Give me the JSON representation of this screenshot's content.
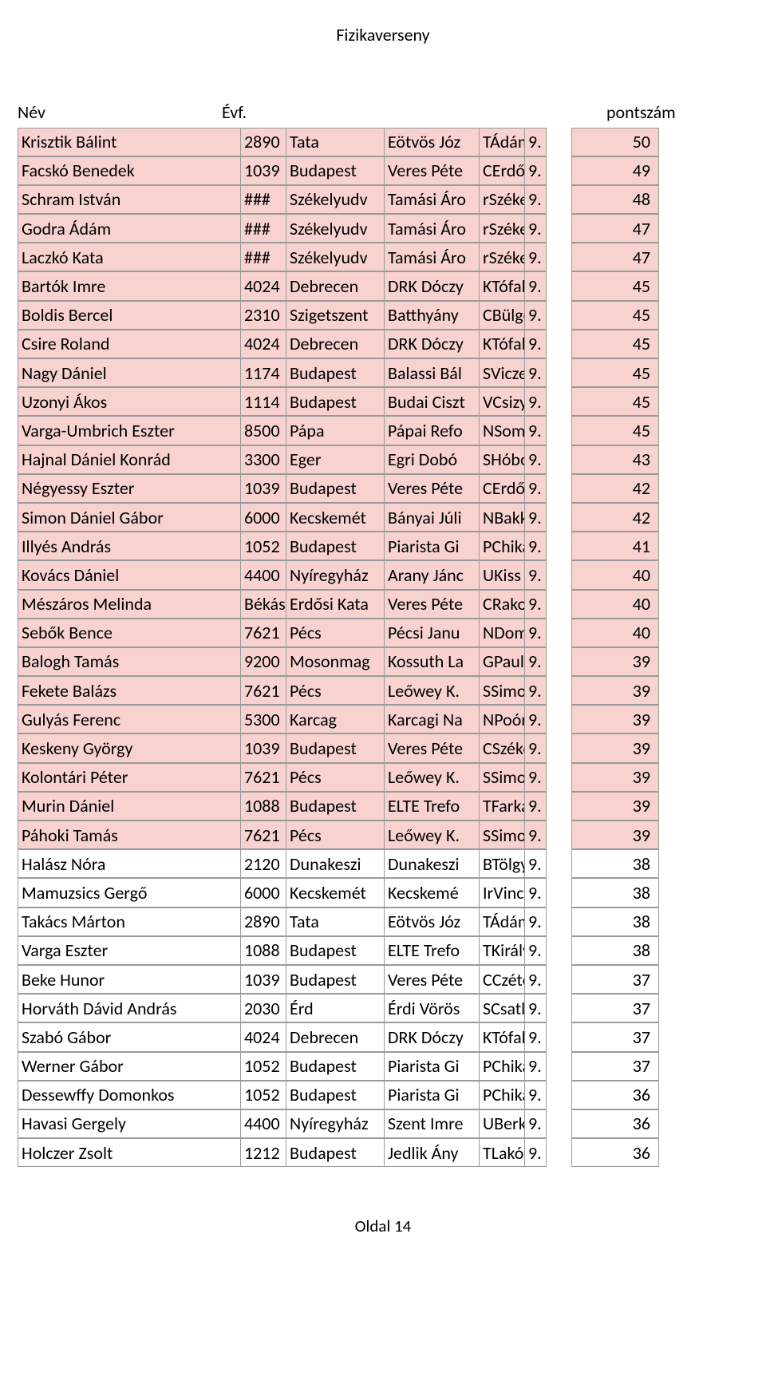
{
  "title": "Fizikaverseny",
  "headers": {
    "name": "Név",
    "evf": "Évf.",
    "points": "pontszám"
  },
  "footer": "Oldal 14",
  "highlight_color": "#f7d2cf",
  "border_color": "#9a9a9a",
  "rows": [
    {
      "name": "Krisztik Bálint",
      "c2": "2890",
      "c3": "Tata",
      "c4": "Eötvös Józ",
      "c5": "TÁdám",
      "c6": "9.",
      "pts": "50",
      "hl": true
    },
    {
      "name": "Facskó Benedek",
      "c2": "1039",
      "c3": "Budapest",
      "c4": "Veres Péte",
      "c5": "CErdős",
      "c6": "9.",
      "pts": "49",
      "hl": true
    },
    {
      "name": "Schram István",
      "c2": "###",
      "c3": "Székelyudv",
      "c4": "Tamási Áro",
      "c5": "rSzéke",
      "c6": "9.",
      "pts": "48",
      "hl": true
    },
    {
      "name": "Godra Ádám",
      "c2": "###",
      "c3": "Székelyudv",
      "c4": "Tamási Áro",
      "c5": "rSzéke",
      "c6": "9.",
      "pts": "47",
      "hl": true
    },
    {
      "name": "Laczkó Kata",
      "c2": "###",
      "c3": "Székelyudv",
      "c4": "Tamási Áro",
      "c5": "rSzéke",
      "c6": "9.",
      "pts": "47",
      "hl": true
    },
    {
      "name": "Bartók Imre",
      "c2": "4024",
      "c3": "Debrecen",
      "c4": "DRK Dóczy",
      "c5": "KTófalu",
      "c6": "9.",
      "pts": "45",
      "hl": true
    },
    {
      "name": "Boldis Bercel",
      "c2": "2310",
      "c3": "Szigetszent",
      "c4": "Batthyány",
      "c5": "CBülgö",
      "c6": "9.",
      "pts": "45",
      "hl": true
    },
    {
      "name": "Csire Roland",
      "c2": "4024",
      "c3": "Debrecen",
      "c4": "DRK Dóczy",
      "c5": "KTófalu",
      "c6": "9.",
      "pts": "45",
      "hl": true
    },
    {
      "name": "Nagy Dániel",
      "c2": "1174",
      "c3": "Budapest",
      "c4": "Balassi Bál",
      "c5": "SVicze",
      "c6": "9.",
      "pts": "45",
      "hl": true
    },
    {
      "name": "Uzonyi Ákos",
      "c2": "1114",
      "c3": "Budapest",
      "c4": "Budai Ciszt",
      "c5": "VCsizy",
      "c6": "9.",
      "pts": "45",
      "hl": true
    },
    {
      "name": "Varga-Umbrich Eszter",
      "c2": "8500",
      "c3": "Pápa",
      "c4": "Pápai Refo",
      "c5": "NSomo",
      "c6": "9.",
      "pts": "45",
      "hl": true
    },
    {
      "name": "Hajnal Dániel Konrád",
      "c2": "3300",
      "c3": "Eger",
      "c4": "Egri Dobó",
      "c5": "SHóbo",
      "c6": "9.",
      "pts": "43",
      "hl": true
    },
    {
      "name": "Négyessy Eszter",
      "c2": "1039",
      "c3": "Budapest",
      "c4": "Veres Péte",
      "c5": "CErdős",
      "c6": "9.",
      "pts": "42",
      "hl": true
    },
    {
      "name": "Simon Dániel Gábor",
      "c2": "6000",
      "c3": "Kecskemét",
      "c4": "Bányai Júli",
      "c5": "NBakk",
      "c6": "9.",
      "pts": "42",
      "hl": true
    },
    {
      "name": "Illyés András",
      "c2": "1052",
      "c3": "Budapest",
      "c4": "Piarista Gi",
      "c5": "PChiká",
      "c6": "9.",
      "pts": "41",
      "hl": true
    },
    {
      "name": "Kovács Dániel",
      "c2": "4400",
      "c3": "Nyíregyház",
      "c4": "Arany Jánc",
      "c5": "UKiss L",
      "c6": "9.",
      "pts": "40",
      "hl": true
    },
    {
      "name": "Mészáros Melinda",
      "c2": "Békás",
      "c3": "Erdősi Kata",
      "c4": "Veres Péte",
      "c5": "CRakov",
      "c6": "9.",
      "pts": "40",
      "hl": true
    },
    {
      "name": "Sebők Bence",
      "c2": "7621",
      "c3": "Pécs",
      "c4": "Pécsi Janu",
      "c5": "NDomb",
      "c6": "9.",
      "pts": "40",
      "hl": true
    },
    {
      "name": "Balogh Tamás",
      "c2": "9200",
      "c3": "Mosonmag",
      "c4": "Kossuth La",
      "c5": "GPaulik",
      "c6": "9.",
      "pts": "39",
      "hl": true
    },
    {
      "name": "Fekete Balázs",
      "c2": "7621",
      "c3": "Pécs",
      "c4": "Leőwey K.",
      "c5": "SSimon",
      "c6": "9.",
      "pts": "39",
      "hl": true
    },
    {
      "name": "Gulyás Ferenc",
      "c2": "5300",
      "c3": "Karcag",
      "c4": "Karcagi Na",
      "c5": "NPoórn",
      "c6": "9.",
      "pts": "39",
      "hl": true
    },
    {
      "name": "Keskeny György",
      "c2": "1039",
      "c3": "Budapest",
      "c4": "Veres Péte",
      "c5": "CSzéke",
      "c6": "9.",
      "pts": "39",
      "hl": true
    },
    {
      "name": "Kolontári Péter",
      "c2": "7621",
      "c3": "Pécs",
      "c4": "Leőwey K.",
      "c5": "SSimon",
      "c6": "9.",
      "pts": "39",
      "hl": true
    },
    {
      "name": "Murin Dániel",
      "c2": "1088",
      "c3": "Budapest",
      "c4": "ELTE Trefo",
      "c5": "TFarka",
      "c6": "9.",
      "pts": "39",
      "hl": true
    },
    {
      "name": "Páhoki Tamás",
      "c2": "7621",
      "c3": "Pécs",
      "c4": "Leőwey K.",
      "c5": "SSimon",
      "c6": "9.",
      "pts": "39",
      "hl": true
    },
    {
      "name": "Halász Nóra",
      "c2": "2120",
      "c3": "Dunakeszi",
      "c4": "Dunakeszi",
      "c5": "BTölgy",
      "c6": "9.",
      "pts": "38",
      "hl": false
    },
    {
      "name": "Mamuzsics Gergő",
      "c2": "6000",
      "c3": "Kecskemét",
      "c4": "Kecskemé",
      "c5": "IrVincz",
      "c6": "9.",
      "pts": "38",
      "hl": false
    },
    {
      "name": "Takács Márton",
      "c2": "2890",
      "c3": "Tata",
      "c4": "Eötvös Józ",
      "c5": "TÁdám",
      "c6": "9.",
      "pts": "38",
      "hl": false
    },
    {
      "name": "Varga Eszter",
      "c2": "1088",
      "c3": "Budapest",
      "c4": "ELTE Trefo",
      "c5": "TKirály",
      "c6": "9.",
      "pts": "38",
      "hl": false
    },
    {
      "name": "Beke Hunor",
      "c2": "1039",
      "c3": "Budapest",
      "c4": "Veres Péte",
      "c5": "CCzéte",
      "c6": "9.",
      "pts": "37",
      "hl": false
    },
    {
      "name": "Horváth Dávid András",
      "c2": "2030",
      "c3": "Érd",
      "c4": "Érdi Vörös",
      "c5": "SCsatló",
      "c6": "9.",
      "pts": "37",
      "hl": false
    },
    {
      "name": "Szabó Gábor",
      "c2": "4024",
      "c3": "Debrecen",
      "c4": "DRK Dóczy",
      "c5": "KTófalu",
      "c6": "9.",
      "pts": "37",
      "hl": false
    },
    {
      "name": "Werner Gábor",
      "c2": "1052",
      "c3": "Budapest",
      "c4": "Piarista Gi",
      "c5": "PChiká",
      "c6": "9.",
      "pts": "37",
      "hl": false
    },
    {
      "name": "Dessewffy Domonkos",
      "c2": "1052",
      "c3": "Budapest",
      "c4": "Piarista Gi",
      "c5": "PChiká",
      "c6": "9.",
      "pts": "36",
      "hl": false
    },
    {
      "name": "Havasi Gergely",
      "c2": "4400",
      "c3": "Nyíregyház",
      "c4": "Szent Imre",
      "c5": "UBerki",
      "c6": "9.",
      "pts": "36",
      "hl": false
    },
    {
      "name": "Holczer Zsolt",
      "c2": "1212",
      "c3": "Budapest",
      "c4": "Jedlik Ány",
      "c5": "TLakó",
      "c6": "9.",
      "pts": "36",
      "hl": false
    }
  ]
}
